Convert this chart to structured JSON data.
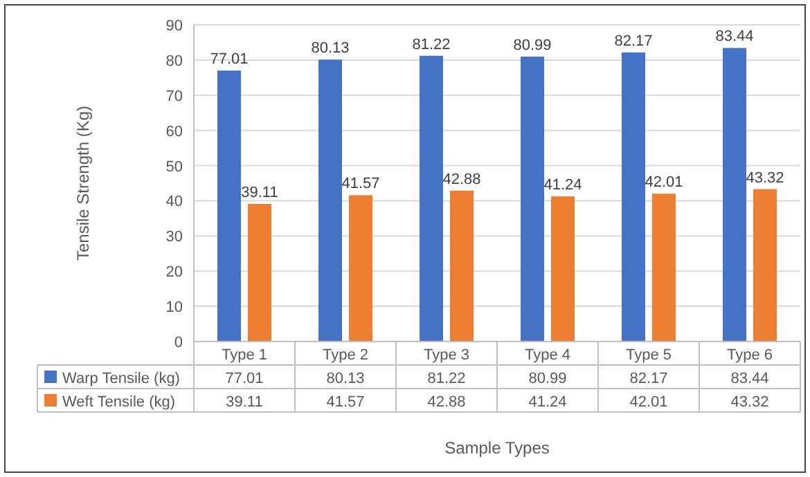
{
  "chart_data": {
    "type": "bar",
    "xlabel": "Sample Types",
    "ylabel": "Tensile Strength (Kg)",
    "categories": [
      "Type 1",
      "Type 2",
      "Type 3",
      "Type 4",
      "Type 5",
      "Type 6"
    ],
    "series": [
      {
        "name": "Warp Tensile (kg)",
        "color": "#4472c4",
        "values": [
          77.01,
          80.13,
          81.22,
          80.99,
          82.17,
          83.44
        ],
        "value_labels": [
          "77.01",
          "80.13",
          "81.22",
          "80.99",
          "82.17",
          "83.44"
        ]
      },
      {
        "name": "Weft Tensile (kg)",
        "color": "#ed7d31",
        "values": [
          39.11,
          41.57,
          42.88,
          41.24,
          42.01,
          43.32
        ],
        "value_labels": [
          "39.11",
          "41.57",
          "42.88",
          "41.24",
          "42.01",
          "43.32"
        ]
      }
    ],
    "annotations": [
      "77.01",
      "80.13",
      "81.22",
      "80.99",
      "82.17",
      "83.44",
      "39.11",
      "41.57",
      "42.88",
      "41.24",
      "42.01",
      "43.32"
    ],
    "ylim": [
      0,
      90
    ],
    "yticks": [
      0,
      10,
      20,
      30,
      40,
      50,
      60,
      70,
      80,
      90
    ],
    "grid": "y",
    "data_labels": true,
    "legend": "bottom"
  }
}
